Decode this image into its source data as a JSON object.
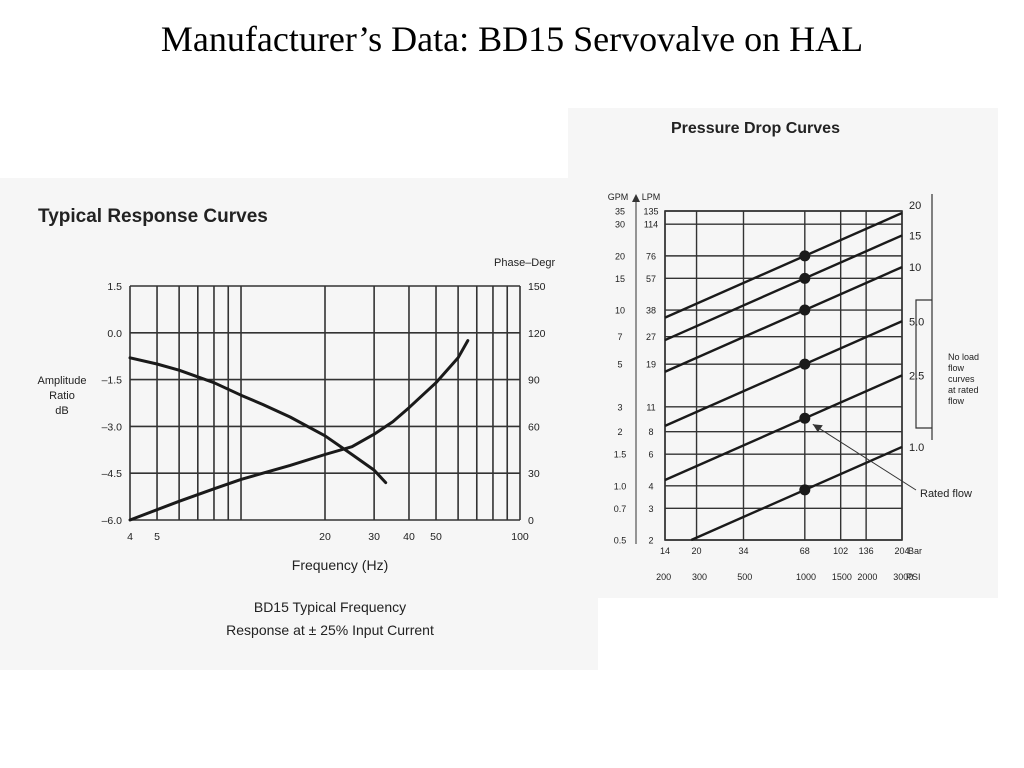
{
  "slide": {
    "title": "Manufacturer’s Data: BD15 Servovalve on HAL"
  },
  "colors": {
    "line": "#1a1a1a",
    "grid": "#333333",
    "panel": "#f6f6f6"
  },
  "chart_data": [
    {
      "type": "line",
      "title": "Typical Response Curves",
      "xlabel": "Frequency (Hz)",
      "ylabel": [
        "Amplitude",
        "Ratio",
        "dB"
      ],
      "y2label": "Phase–Degr",
      "side_label": [
        "No",
        "load",
        "flow"
      ],
      "caption": [
        "BD15 Typical Frequency",
        "Response at ± 25% Input Current"
      ],
      "x_scale": "log",
      "xlim": [
        4,
        100
      ],
      "ylim": [
        -6.0,
        1.5
      ],
      "y2lim": [
        0,
        150
      ],
      "x_tick_labels": [
        "4",
        "5",
        "20",
        "30",
        "40",
        "50",
        "100"
      ],
      "x_tick_values": [
        4,
        5,
        20,
        30,
        40,
        50,
        100
      ],
      "x_grid": [
        4,
        5,
        6,
        7,
        8,
        9,
        10,
        20,
        30,
        40,
        50,
        60,
        70,
        80,
        90,
        100
      ],
      "y_tick_labels": [
        "1.5",
        "0.0",
        "–1.5",
        "–3.0",
        "–4.5",
        "–6.0"
      ],
      "y_tick_values": [
        1.5,
        0.0,
        -1.5,
        -3.0,
        -4.5,
        -6.0
      ],
      "y2_tick_labels": [
        "150",
        "120",
        "90",
        "60",
        "30",
        "0"
      ],
      "y2_tick_values": [
        150,
        120,
        90,
        60,
        30,
        0
      ],
      "grid": true,
      "series": [
        {
          "axis": "left",
          "x": [
            4,
            5,
            6,
            8,
            10,
            12,
            15,
            20,
            25,
            30,
            33
          ],
          "y": [
            -0.8,
            -1.0,
            -1.2,
            -1.6,
            -2.0,
            -2.3,
            -2.7,
            -3.3,
            -3.9,
            -4.4,
            -4.8
          ]
        },
        {
          "axis": "right",
          "x": [
            4,
            6,
            8,
            10,
            15,
            20,
            25,
            30,
            35,
            40,
            50,
            60,
            65
          ],
          "y": [
            0,
            12,
            20,
            26,
            35,
            42,
            47,
            55,
            63,
            72,
            88,
            104,
            115
          ]
        }
      ]
    },
    {
      "type": "line",
      "title": "Pressure Drop Curves",
      "x_scale": "log",
      "y_scale": "log",
      "xlim": [
        14,
        204
      ],
      "ylim": [
        2,
        135
      ],
      "x_tick_labels": [
        "14",
        "20",
        "34",
        "68",
        "102",
        "136",
        "204",
        "Bar"
      ],
      "x_tick_values": [
        14,
        20,
        34,
        68,
        102,
        136,
        204
      ],
      "x2_tick_labels": [
        "200",
        "300",
        "500",
        "1000",
        "1500",
        "2000",
        "3000",
        "PSI"
      ],
      "y_gpm_header": "GPM",
      "y_lpm_header": "LPM",
      "y_gpm_labels": [
        "35",
        "30",
        "20",
        "15",
        "10",
        "7",
        "5",
        "3",
        "2",
        "1.5",
        "1.0",
        "0.7",
        "0.5"
      ],
      "y_lpm_labels": [
        "135",
        "114",
        "76",
        "57",
        "38",
        "27",
        "19",
        "11",
        "8",
        "6",
        "4",
        "3",
        "2"
      ],
      "y_lpm_values": [
        135,
        114,
        76,
        57,
        38,
        27,
        19,
        11,
        8,
        6,
        4,
        3,
        2
      ],
      "grid": true,
      "series_labels": [
        "20",
        "15",
        "10",
        "5.0",
        "2.5",
        "1.0"
      ],
      "series_ratedflow_gpm": [
        20,
        15,
        10,
        5.0,
        2.5,
        1.0
      ],
      "series_rated_point_lpm": [
        76,
        57,
        38,
        19,
        9.5,
        3.8
      ],
      "rated_x": 68,
      "bracket_label": [
        "No load",
        "flow",
        "curves",
        "at rated",
        "flow"
      ],
      "annotation": "Rated flow"
    }
  ]
}
